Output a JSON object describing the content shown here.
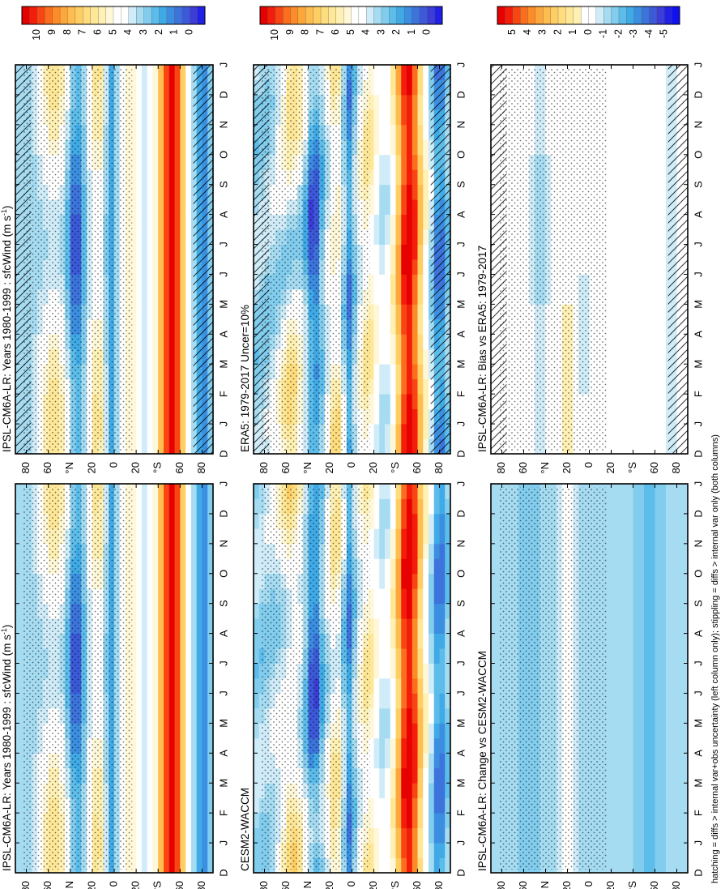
{
  "footnote": "hatching = diffs > internal var+obs uncertainty (left column only); stippling = diffs > internal var only (both columns)",
  "months": [
    "D",
    "J",
    "F",
    "M",
    "A",
    "M",
    "J",
    "J",
    "A",
    "S",
    "O",
    "N",
    "D",
    "J"
  ],
  "lat_labels": [
    "80",
    "60",
    "°N",
    "20",
    "0",
    "20",
    "°S",
    "60",
    "80"
  ],
  "colorbars": {
    "abs": {
      "labels": [
        "10",
        "9",
        "8",
        "7",
        "6",
        "5",
        "4",
        "3",
        "2",
        "1",
        "0"
      ],
      "colors": [
        "#e60000",
        "#f21d0a",
        "#f84514",
        "#fb6e1e",
        "#fb8c28",
        "#fda63c",
        "#fdbd50",
        "#fece64",
        "#fedd7e",
        "#fee898",
        "#fff0b4",
        "#fff8d8",
        "#ffffff",
        "#ffffff",
        "#d0ecf8",
        "#a6dcf2",
        "#82cdee",
        "#5cbcea",
        "#40aae6",
        "#3c8ee0",
        "#3c74dc",
        "#3c5ad8",
        "#3c3cd6",
        "#2020e6"
      ]
    },
    "diff": {
      "labels": [
        "5",
        "4",
        "3",
        "2",
        "1",
        "0",
        "-1",
        "-2",
        "-3",
        "-4",
        "-5"
      ],
      "colors": [
        "#e60000",
        "#f21d0a",
        "#f84514",
        "#fb6e1e",
        "#fb8c28",
        "#fda63c",
        "#fdbd50",
        "#fece64",
        "#fedd7e",
        "#fee898",
        "#fff0b4",
        "#ffffff",
        "#ffffff",
        "#d0ecf8",
        "#a6dcf2",
        "#82cdee",
        "#5cbcea",
        "#40aae6",
        "#3c8ee0",
        "#3c74dc",
        "#3c5ad8",
        "#3c3cd6",
        "#2020e6",
        "#1010f0"
      ]
    }
  },
  "chart_data": [
    {
      "type": "heatmap",
      "title": "IPSL-CM6A-LR: Years 1980-1999 : sfcWind (m s-1)",
      "title_base": "IPSL-CM6A-LR: Years 1980-1999 : sfcWind (m s",
      "title_sup": "-1",
      "title_close": ")",
      "x": "month",
      "y": "latitude",
      "clim": [
        0,
        10
      ],
      "colorbar": "abs",
      "hatching": true,
      "stippling": true
    },
    {
      "type": "heatmap",
      "title": "IPSL-CM6A-LR: Years 1980-1999 : sfcWind (m s-1)",
      "title_base": "IPSL-CM6A-LR: Years 1980-1999 : sfcWind (m s",
      "title_sup": "-1",
      "title_close": ")",
      "x": "month",
      "y": "latitude",
      "clim": [
        0,
        10
      ],
      "colorbar": "abs",
      "hatching": false,
      "stippling": true
    },
    {
      "type": "heatmap",
      "title": "ERA5: 1979-2017 Uncer=10%",
      "x": "month",
      "y": "latitude",
      "clim": [
        0,
        10
      ],
      "colorbar": "abs",
      "hatching": true,
      "stippling": true
    },
    {
      "type": "heatmap",
      "title": "CESM2-WACCM",
      "x": "month",
      "y": "latitude",
      "clim": [
        0,
        10
      ],
      "colorbar": "abs",
      "hatching": false,
      "stippling": true
    },
    {
      "type": "heatmap",
      "title": "IPSL-CM6A-LR: Bias vs ERA5: 1979-2017",
      "x": "month",
      "y": "latitude",
      "clim": [
        -5,
        5
      ],
      "colorbar": "diff",
      "hatching": true,
      "stippling": true
    },
    {
      "type": "heatmap",
      "title": "IPSL-CM6A-LR: Change vs CESM2-WACCM",
      "x": "month",
      "y": "latitude",
      "clim": [
        -5,
        5
      ],
      "colorbar": "diff",
      "hatching": false,
      "stippling": true
    }
  ]
}
